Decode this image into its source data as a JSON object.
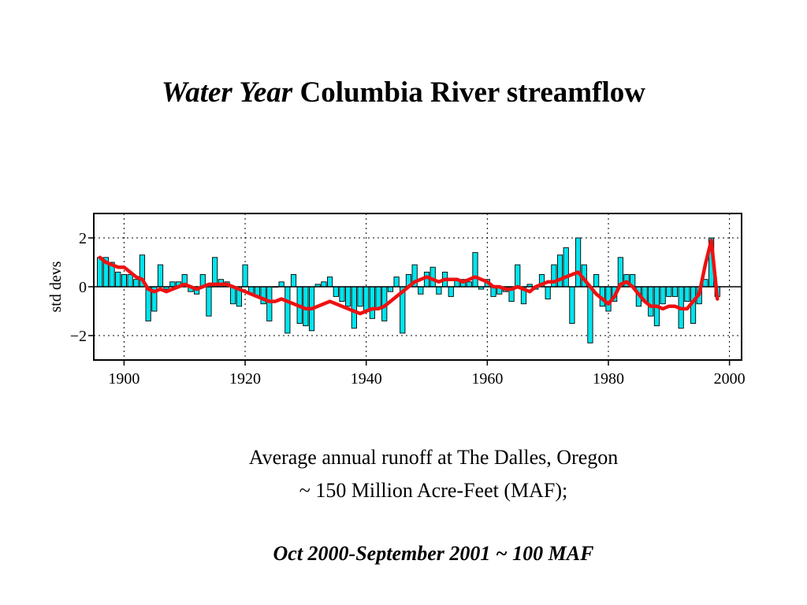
{
  "slide": {
    "title_italic": "Water Year",
    "title_rest": "Columbia River streamflow",
    "caption_line1": "Average annual runoff at The Dalles, Oregon",
    "caption_line2": "~ 150 Million Acre-Feet (MAF);",
    "caption_line3": "Oct 2000-September 2001 ~ 100 MAF"
  },
  "colors": {
    "bars": "#00e5ee",
    "smooth_line": "#ee1111",
    "grid": "#000000"
  },
  "chart_data": {
    "type": "bar",
    "title": "",
    "xlabel": "",
    "ylabel": "std devs",
    "xlim": [
      1895,
      2002
    ],
    "ylim": [
      -3,
      3
    ],
    "x_ticks": [
      1900,
      1920,
      1940,
      1960,
      1980,
      2000
    ],
    "x_tick_labels": [
      "1900",
      "1920",
      "1940",
      "1960",
      "1980",
      "2000"
    ],
    "y_ticks": [
      2,
      0,
      -2
    ],
    "y_tick_labels": [
      "2",
      "0",
      "−2"
    ],
    "grid": true,
    "legend": "none",
    "x": [
      1896,
      1897,
      1898,
      1899,
      1900,
      1901,
      1902,
      1903,
      1904,
      1905,
      1906,
      1907,
      1908,
      1909,
      1910,
      1911,
      1912,
      1913,
      1914,
      1915,
      1916,
      1917,
      1918,
      1919,
      1920,
      1921,
      1922,
      1923,
      1924,
      1925,
      1926,
      1927,
      1928,
      1929,
      1930,
      1931,
      1932,
      1933,
      1934,
      1935,
      1936,
      1937,
      1938,
      1939,
      1940,
      1941,
      1942,
      1943,
      1944,
      1945,
      1946,
      1947,
      1948,
      1949,
      1950,
      1951,
      1952,
      1953,
      1954,
      1955,
      1956,
      1957,
      1958,
      1959,
      1960,
      1961,
      1962,
      1963,
      1964,
      1965,
      1966,
      1967,
      1968,
      1969,
      1970,
      1971,
      1972,
      1973,
      1974,
      1975,
      1976,
      1977,
      1978,
      1979,
      1980,
      1981,
      1982,
      1983,
      1984,
      1985,
      1986,
      1987,
      1988,
      1989,
      1990,
      1991,
      1992,
      1993,
      1994,
      1995,
      1996,
      1997,
      1998
    ],
    "series": [
      {
        "type": "bar",
        "values": [
          1.2,
          1.2,
          1.0,
          0.6,
          0.5,
          0.5,
          0.3,
          1.3,
          -1.4,
          -1.0,
          0.9,
          -0.1,
          0.2,
          0.2,
          0.5,
          -0.2,
          -0.3,
          0.5,
          -1.2,
          1.2,
          0.3,
          0.2,
          -0.7,
          -0.8,
          0.9,
          -0.3,
          -0.4,
          -0.7,
          -1.4,
          0.0,
          0.2,
          -1.9,
          0.5,
          -1.5,
          -1.6,
          -1.8,
          0.1,
          0.2,
          0.4,
          -0.4,
          -0.6,
          -0.8,
          -1.7,
          -0.8,
          -1.0,
          -1.3,
          -0.9,
          -1.4,
          -0.2,
          0.4,
          -1.9,
          0.5,
          0.9,
          -0.3,
          0.6,
          0.8,
          -0.3,
          0.6,
          -0.4,
          0.3,
          0.3,
          0.2,
          1.4,
          -0.1,
          0.3,
          -0.4,
          -0.3,
          -0.2,
          -0.6,
          0.9,
          -0.7,
          0.1,
          -0.1,
          0.5,
          -0.5,
          0.9,
          1.3,
          1.6,
          -1.5,
          2.0,
          0.9,
          -2.3,
          0.5,
          -0.8,
          -1.0,
          -0.6,
          1.2,
          0.5,
          0.5,
          -0.8,
          -0.6,
          -1.2,
          -1.6,
          -0.7,
          -0.4,
          -0.4,
          -1.7,
          -0.6,
          -1.5,
          -0.7,
          0.3,
          2.0,
          -0.4
        ]
      },
      {
        "type": "line",
        "values": [
          1.2,
          1.0,
          0.9,
          0.8,
          0.8,
          0.6,
          0.4,
          0.3,
          -0.1,
          -0.2,
          -0.1,
          -0.2,
          -0.1,
          0.0,
          0.1,
          0.0,
          -0.1,
          0.0,
          0.1,
          0.1,
          0.1,
          0.1,
          0.0,
          -0.1,
          -0.2,
          -0.3,
          -0.4,
          -0.5,
          -0.6,
          -0.6,
          -0.5,
          -0.6,
          -0.7,
          -0.8,
          -0.9,
          -0.9,
          -0.8,
          -0.7,
          -0.6,
          -0.7,
          -0.8,
          -0.9,
          -1.0,
          -1.1,
          -1.0,
          -0.9,
          -0.9,
          -0.8,
          -0.6,
          -0.4,
          -0.2,
          0.0,
          0.2,
          0.3,
          0.4,
          0.3,
          0.2,
          0.3,
          0.3,
          0.3,
          0.2,
          0.3,
          0.4,
          0.3,
          0.2,
          0.0,
          0.0,
          -0.1,
          -0.1,
          0.0,
          -0.1,
          -0.2,
          0.0,
          0.1,
          0.2,
          0.2,
          0.3,
          0.4,
          0.5,
          0.6,
          0.3,
          0.0,
          -0.3,
          -0.5,
          -0.7,
          -0.4,
          0.1,
          0.2,
          0.0,
          -0.3,
          -0.6,
          -0.8,
          -0.8,
          -0.9,
          -0.8,
          -0.8,
          -0.9,
          -0.9,
          -0.6,
          -0.3,
          0.9,
          1.9,
          -0.5
        ]
      }
    ]
  }
}
